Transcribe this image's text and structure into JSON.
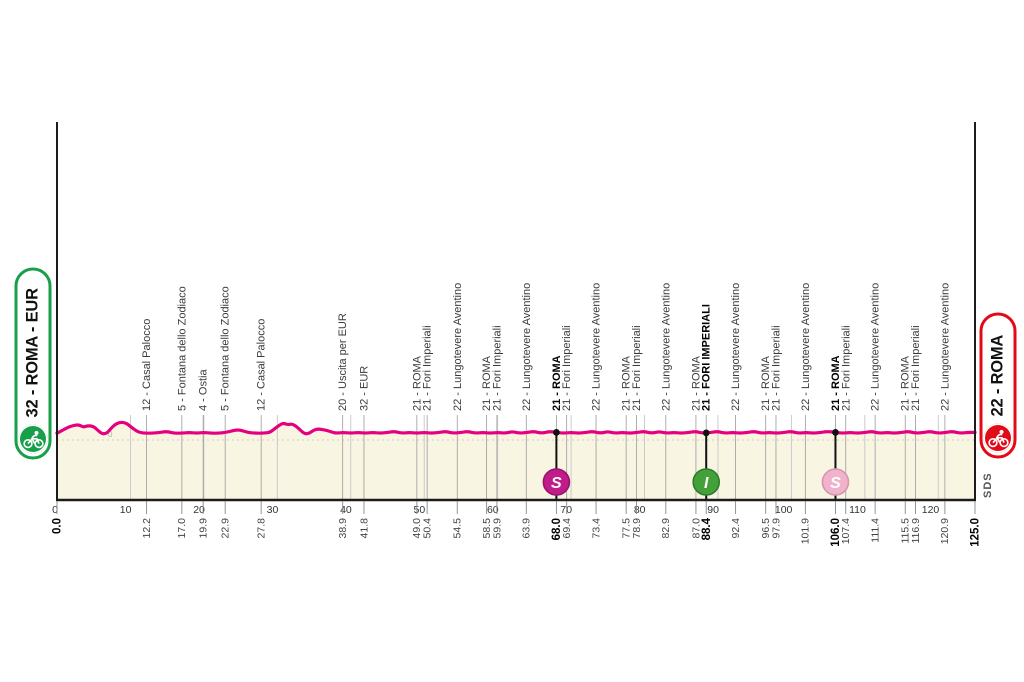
{
  "badges": {
    "start": {
      "label": "32 - ROMA - EUR",
      "color": "#189f4a"
    },
    "finish": {
      "label": "22 - ROMA",
      "color": "#e30a18"
    }
  },
  "footer": {
    "credit": "SDS"
  },
  "colors": {
    "profile_line": "#e5007d",
    "area_fill": "#f9f5e3",
    "axis": "#1c1c1c",
    "grid": "#c6c6c6",
    "leader": "#9b9b9b",
    "tick_text": "#333333",
    "label_text": "#3a3a3a",
    "bold_text": "#000000",
    "zero_line": "#d6d0bd"
  },
  "chart_data": {
    "type": "area",
    "title": "",
    "x_unit": "km",
    "x_range": [
      0,
      125
    ],
    "elevation_unit": "m",
    "grid": true,
    "zero_label": "0",
    "axis_ticks": [
      0,
      10,
      20,
      30,
      40,
      50,
      60,
      70,
      80,
      90,
      100,
      110,
      120
    ],
    "distance_labels": [
      {
        "km": 0.0,
        "bold": true
      },
      {
        "km": 12.2
      },
      {
        "km": 17.0
      },
      {
        "km": 19.9
      },
      {
        "km": 22.9
      },
      {
        "km": 27.8
      },
      {
        "km": 38.9
      },
      {
        "km": 41.8
      },
      {
        "km": 49.0
      },
      {
        "km": 50.4
      },
      {
        "km": 54.5
      },
      {
        "km": 58.5
      },
      {
        "km": 59.9
      },
      {
        "km": 63.9
      },
      {
        "km": 68.0,
        "bold": true
      },
      {
        "km": 69.4
      },
      {
        "km": 73.4
      },
      {
        "km": 77.5
      },
      {
        "km": 78.9
      },
      {
        "km": 82.9
      },
      {
        "km": 87.0
      },
      {
        "km": 88.4,
        "bold": true
      },
      {
        "km": 92.4
      },
      {
        "km": 96.5
      },
      {
        "km": 97.9
      },
      {
        "km": 101.9
      },
      {
        "km": 106.0,
        "bold": true
      },
      {
        "km": 107.4
      },
      {
        "km": 111.4
      },
      {
        "km": 115.5
      },
      {
        "km": 116.9
      },
      {
        "km": 120.9
      },
      {
        "km": 125.0,
        "bold": true
      }
    ],
    "waypoints": [
      {
        "km": 12.2,
        "label": "12 - Casal Palocco"
      },
      {
        "km": 17.0,
        "label": "5 - Fontana dello Zodiaco"
      },
      {
        "km": 19.9,
        "label": "4 - Ostia"
      },
      {
        "km": 22.9,
        "label": "5 - Fontana dello Zodiaco"
      },
      {
        "km": 27.8,
        "label": "12 - Casal Palocco"
      },
      {
        "km": 38.9,
        "label": "20 - Uscita per EUR"
      },
      {
        "km": 41.8,
        "label": "32 - EUR"
      },
      {
        "km": 49.0,
        "label": "21 - ROMA"
      },
      {
        "km": 50.4,
        "label": "21 - Fori Imperiali"
      },
      {
        "km": 54.5,
        "label": "22 - Lungotevere Aventino"
      },
      {
        "km": 58.5,
        "label": "21 - ROMA"
      },
      {
        "km": 59.9,
        "label": "21 - Fori Imperiali"
      },
      {
        "km": 63.9,
        "label": "22 - Lungotevere Aventino"
      },
      {
        "km": 68.0,
        "label": "21 - ROMA",
        "bold": true
      },
      {
        "km": 69.4,
        "label": "21 - Fori Imperiali"
      },
      {
        "km": 73.4,
        "label": "22 - Lungotevere Aventino"
      },
      {
        "km": 77.5,
        "label": "21 - ROMA"
      },
      {
        "km": 78.9,
        "label": "21 - Fori Imperiali"
      },
      {
        "km": 82.9,
        "label": "22 - Lungotevere Aventino"
      },
      {
        "km": 87.0,
        "label": "21 - ROMA"
      },
      {
        "km": 88.4,
        "label": "21 - FORI IMPERIALI",
        "bold": true
      },
      {
        "km": 92.4,
        "label": "22 - Lungotevere Aventino"
      },
      {
        "km": 96.5,
        "label": "21 - ROMA"
      },
      {
        "km": 97.9,
        "label": "21 - Fori Imperiali"
      },
      {
        "km": 101.9,
        "label": "22 - Lungotevere Aventino"
      },
      {
        "km": 106.0,
        "label": "21 - ROMA",
        "bold": true
      },
      {
        "km": 107.4,
        "label": "21 - Fori Imperiali"
      },
      {
        "km": 111.4,
        "label": "22 - Lungotevere Aventino"
      },
      {
        "km": 115.5,
        "label": "21 - ROMA"
      },
      {
        "km": 116.9,
        "label": "21 - Fori Imperiali"
      },
      {
        "km": 120.9,
        "label": "22 - Lungotevere Aventino"
      }
    ],
    "markers": [
      {
        "km": 68.0,
        "letter": "S",
        "name": "sprint-marker",
        "fill": "#c01d8a",
        "stroke": "#97136b"
      },
      {
        "km": 88.4,
        "letter": "I",
        "name": "intergiro-marker",
        "fill": "#44a13a",
        "stroke": "#2c7d2a"
      },
      {
        "km": 106.0,
        "letter": "S",
        "name": "sprint2-marker",
        "fill": "#f0b3cb",
        "stroke": "#d893ad"
      }
    ],
    "profile": [
      [
        0,
        8
      ],
      [
        0.7,
        11
      ],
      [
        1.5,
        15
      ],
      [
        2.2,
        17
      ],
      [
        3,
        18
      ],
      [
        3.6,
        15
      ],
      [
        4.2,
        17
      ],
      [
        5,
        16
      ],
      [
        5.6,
        11
      ],
      [
        6.2,
        7
      ],
      [
        6.8,
        8
      ],
      [
        7.4,
        14
      ],
      [
        8,
        19
      ],
      [
        8.7,
        21
      ],
      [
        9.4,
        20
      ],
      [
        10,
        16
      ],
      [
        10.6,
        12
      ],
      [
        11.2,
        9
      ],
      [
        12,
        8
      ],
      [
        13,
        8
      ],
      [
        14,
        9
      ],
      [
        15,
        10
      ],
      [
        16,
        8
      ],
      [
        17,
        8
      ],
      [
        18,
        9
      ],
      [
        19,
        8
      ],
      [
        20,
        9
      ],
      [
        21,
        8
      ],
      [
        22,
        8
      ],
      [
        23,
        9
      ],
      [
        24,
        11
      ],
      [
        24.6,
        12
      ],
      [
        25.2,
        11
      ],
      [
        26,
        9
      ],
      [
        27,
        8
      ],
      [
        28,
        8
      ],
      [
        29,
        9
      ],
      [
        29.6,
        13
      ],
      [
        30.2,
        17
      ],
      [
        30.8,
        20
      ],
      [
        31.4,
        18
      ],
      [
        32,
        19
      ],
      [
        32.6,
        16
      ],
      [
        33.2,
        11
      ],
      [
        33.8,
        7
      ],
      [
        34.4,
        8
      ],
      [
        35,
        12
      ],
      [
        35.6,
        13
      ],
      [
        36.4,
        12
      ],
      [
        37.2,
        10
      ],
      [
        38,
        8
      ],
      [
        39,
        9
      ],
      [
        40,
        8
      ],
      [
        41,
        9
      ],
      [
        42,
        8
      ],
      [
        43,
        9
      ],
      [
        44,
        8
      ],
      [
        45,
        9
      ],
      [
        46,
        10
      ],
      [
        47,
        8
      ],
      [
        48,
        9
      ],
      [
        49,
        8
      ],
      [
        50,
        9
      ],
      [
        51,
        8
      ],
      [
        52,
        9
      ],
      [
        53,
        10
      ],
      [
        54,
        8
      ],
      [
        55,
        9
      ],
      [
        56,
        10
      ],
      [
        57,
        8
      ],
      [
        58,
        9
      ],
      [
        59,
        8
      ],
      [
        60,
        9
      ],
      [
        61,
        8
      ],
      [
        62,
        10
      ],
      [
        63,
        8
      ],
      [
        64,
        9
      ],
      [
        65,
        10
      ],
      [
        66,
        8
      ],
      [
        67,
        10
      ],
      [
        68,
        9
      ],
      [
        69,
        8
      ],
      [
        70,
        9
      ],
      [
        71,
        8
      ],
      [
        72,
        9
      ],
      [
        73,
        10
      ],
      [
        74,
        8
      ],
      [
        75,
        10
      ],
      [
        76,
        8
      ],
      [
        77,
        9
      ],
      [
        78,
        8
      ],
      [
        79,
        9
      ],
      [
        80,
        10
      ],
      [
        81,
        8
      ],
      [
        82,
        10
      ],
      [
        83,
        8
      ],
      [
        84,
        9
      ],
      [
        85,
        8
      ],
      [
        86,
        9
      ],
      [
        87,
        10
      ],
      [
        88,
        8
      ],
      [
        89,
        9
      ],
      [
        90,
        10
      ],
      [
        91,
        8
      ],
      [
        92,
        9
      ],
      [
        93,
        8
      ],
      [
        94,
        9
      ],
      [
        95,
        10
      ],
      [
        96,
        8
      ],
      [
        97,
        9
      ],
      [
        98,
        8
      ],
      [
        99,
        9
      ],
      [
        100,
        10
      ],
      [
        101,
        8
      ],
      [
        102,
        9
      ],
      [
        103,
        8
      ],
      [
        104,
        9
      ],
      [
        105,
        10
      ],
      [
        106,
        9
      ],
      [
        107,
        8
      ],
      [
        108,
        9
      ],
      [
        109,
        8
      ],
      [
        110,
        9
      ],
      [
        111,
        10
      ],
      [
        112,
        8
      ],
      [
        113,
        9
      ],
      [
        114,
        8
      ],
      [
        115,
        9
      ],
      [
        116,
        10
      ],
      [
        117,
        8
      ],
      [
        118,
        9
      ],
      [
        119,
        10
      ],
      [
        120,
        8
      ],
      [
        121,
        9
      ],
      [
        122,
        10
      ],
      [
        123,
        8
      ],
      [
        124,
        9
      ],
      [
        125,
        9
      ]
    ]
  }
}
